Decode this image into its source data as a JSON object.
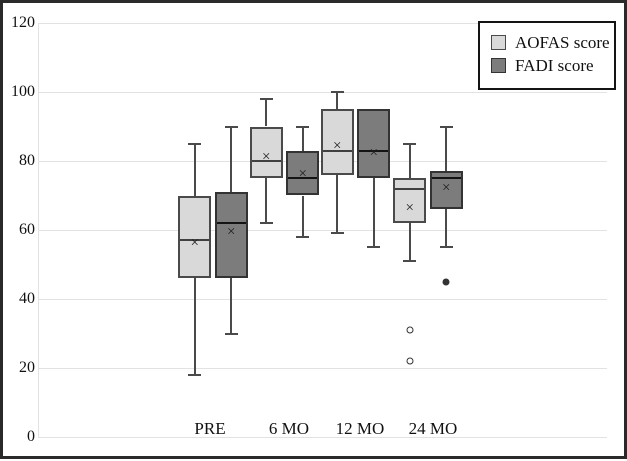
{
  "chart_data": {
    "type": "boxplot",
    "title": "",
    "xlabel": "",
    "ylabel": "",
    "categories": [
      "PRE",
      "6 MO",
      "12 MO",
      "24 MO"
    ],
    "y_axis": {
      "min": 0,
      "max": 120,
      "tick_step": 20,
      "ticks": [
        0,
        20,
        40,
        60,
        80,
        100,
        120
      ],
      "gridlines": true
    },
    "legend": {
      "position": "top-right",
      "entries": [
        {
          "label": "AOFAS score",
          "color": "#d9d9d9"
        },
        {
          "label": "FADI score",
          "color": "#7c7c7c"
        }
      ]
    },
    "colors": {
      "aofas_fill": "#d9d9d9",
      "aofas_border": "#4a4a4a",
      "aofas_median": "#404040",
      "fadi_fill": "#7c7c7c",
      "fadi_border": "#333333",
      "fadi_median": "#141414",
      "gridline": "#e2e2e2",
      "text": "#111111"
    },
    "series": [
      {
        "name": "AOFAS score",
        "key": "aofas",
        "fill": "#d9d9d9",
        "border": "#4a4a4a",
        "median_color": "#404040",
        "outlier_style": "open",
        "boxes": [
          {
            "category": "PRE",
            "min": 18,
            "q1": 46,
            "median": 57,
            "q3": 70,
            "max": 85,
            "mean": 56,
            "outliers": []
          },
          {
            "category": "6 MO",
            "min": 62,
            "q1": 75,
            "median": 80,
            "q3": 90,
            "max": 98,
            "mean": 81,
            "outliers": []
          },
          {
            "category": "12 MO",
            "min": 59,
            "q1": 76,
            "median": 83,
            "q3": 95,
            "max": 100,
            "mean": 84,
            "outliers": []
          },
          {
            "category": "24 MO",
            "min": 51,
            "q1": 62,
            "median": 72,
            "q3": 75,
            "max": 85,
            "mean": 66,
            "outliers": [
              31,
              22
            ]
          }
        ]
      },
      {
        "name": "FADI score",
        "key": "fadi",
        "fill": "#7c7c7c",
        "border": "#333333",
        "median_color": "#141414",
        "outlier_style": "filled",
        "boxes": [
          {
            "category": "PRE",
            "min": 30,
            "q1": 46,
            "median": 62,
            "q3": 71,
            "max": 90,
            "mean": 59,
            "outliers": []
          },
          {
            "category": "6 MO",
            "min": 58,
            "q1": 70,
            "median": 75,
            "q3": 83,
            "max": 90,
            "mean": 76,
            "outliers": []
          },
          {
            "category": "12 MO",
            "min": 55,
            "q1": 75,
            "median": 83,
            "q3": 95,
            "max": 95,
            "mean": 82,
            "outliers": []
          },
          {
            "category": "24 MO",
            "min": 55,
            "q1": 66,
            "median": 75,
            "q3": 77,
            "max": 90,
            "mean": 72,
            "outliers": [
              45
            ]
          }
        ]
      }
    ]
  }
}
